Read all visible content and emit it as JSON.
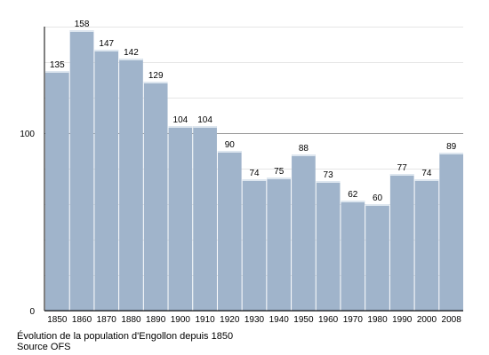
{
  "chart_data": {
    "type": "bar",
    "categories": [
      "1850",
      "1860",
      "1870",
      "1880",
      "1890",
      "1900",
      "1910",
      "1920",
      "1930",
      "1940",
      "1950",
      "1960",
      "1970",
      "1980",
      "1990",
      "2000",
      "2008"
    ],
    "values": [
      135,
      158,
      147,
      142,
      129,
      104,
      104,
      90,
      74,
      75,
      88,
      73,
      62,
      60,
      77,
      74,
      89
    ],
    "data_labels": [
      "135",
      "158",
      "147",
      "142",
      "129",
      "104",
      "104",
      "90",
      "74",
      "75",
      "88",
      "73",
      "62",
      "60",
      "77",
      "74",
      "89"
    ],
    "ylim": [
      0,
      160
    ],
    "y_ticks": [
      0,
      100
    ],
    "y_tick_labels": [
      "0",
      "100"
    ],
    "minor_gridlines": [
      20,
      40,
      60,
      80,
      120,
      140,
      160
    ],
    "grid": true,
    "bar_color": "#a0b4cb",
    "bar_top_color": "#dde6ef",
    "caption": "Évolution de la population d'Engollon depuis 1850",
    "source": "Source OFS"
  }
}
